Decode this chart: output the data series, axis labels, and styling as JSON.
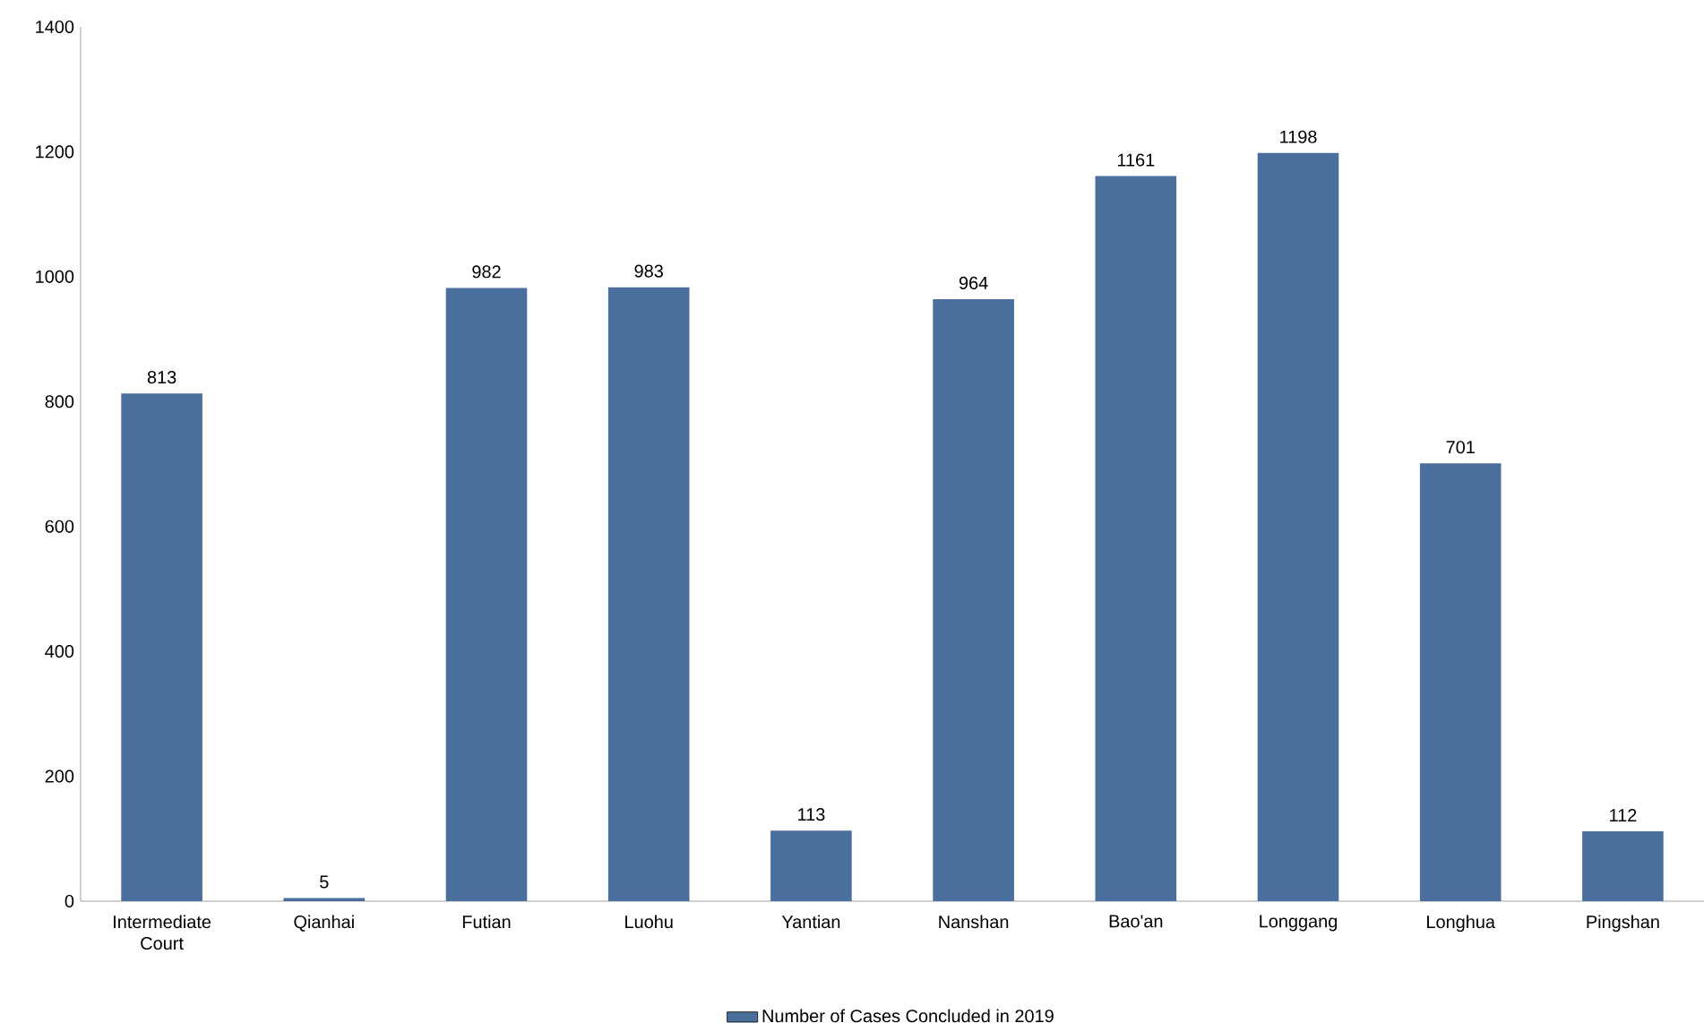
{
  "chart_data": {
    "type": "bar",
    "categories": [
      "Intermediate Court",
      "Qianhai",
      "Futian",
      "Luohu",
      "Yantian",
      "Nanshan",
      "Bao'an",
      "Longgang",
      "Longhua",
      "Pingshan"
    ],
    "series": [
      {
        "name": "Number of Cases Concluded in 2019",
        "color": "#4a6f9c",
        "values": [
          813,
          5,
          982,
          983,
          113,
          964,
          1161,
          1198,
          701,
          112
        ]
      }
    ],
    "ylim": [
      0,
      1400
    ],
    "yticks": [
      0,
      200,
      400,
      600,
      800,
      1000,
      1200,
      1400
    ],
    "data_labels": true,
    "legend": "bottom",
    "grid": false
  }
}
